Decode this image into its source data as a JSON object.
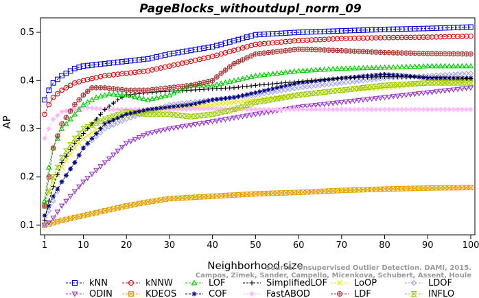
{
  "title": "PageBlocks_withoutdupl_norm_09",
  "watermark": {
    "line1": "Source: Unsupervised Outlier Detection. DAMI, 2015.",
    "line2": "Campos, Zimek, Sander, Campello, Micenkova, Schubert, Assent, Houle"
  },
  "chart_data": {
    "type": "line",
    "title": "PageBlocks_withoutdupl_norm_09",
    "xlabel": "Neighborhood size",
    "ylabel": "AP",
    "xlim": [
      1,
      100
    ],
    "ylim": [
      0.08,
      0.53
    ],
    "xticks": [
      1,
      10,
      20,
      30,
      40,
      50,
      60,
      70,
      80,
      90,
      100
    ],
    "yticks": [
      0.1,
      0.2,
      0.3,
      0.4,
      0.5
    ],
    "grid": false,
    "legend_position": "bottom",
    "series": [
      {
        "name": "kNN",
        "color": "#0000dd",
        "marker": "square",
        "x": [
          1,
          2,
          3,
          5,
          8,
          10,
          15,
          20,
          25,
          30,
          40,
          50,
          60,
          70,
          80,
          90,
          100
        ],
        "y": [
          0.36,
          0.38,
          0.395,
          0.41,
          0.425,
          0.43,
          0.435,
          0.44,
          0.445,
          0.455,
          0.47,
          0.495,
          0.5,
          0.503,
          0.506,
          0.508,
          0.511
        ]
      },
      {
        "name": "kNNW",
        "color": "#dd0000",
        "marker": "circle",
        "x": [
          1,
          2,
          3,
          5,
          8,
          10,
          15,
          20,
          25,
          30,
          40,
          50,
          60,
          70,
          80,
          90,
          100
        ],
        "y": [
          0.33,
          0.35,
          0.365,
          0.38,
          0.395,
          0.4,
          0.41,
          0.415,
          0.42,
          0.43,
          0.45,
          0.475,
          0.483,
          0.487,
          0.489,
          0.49,
          0.492
        ]
      },
      {
        "name": "LOF",
        "color": "#00cc00",
        "marker": "triangle-up",
        "x": [
          1,
          2,
          3,
          5,
          8,
          10,
          13,
          16,
          20,
          25,
          30,
          35,
          40,
          45,
          50,
          60,
          70,
          80,
          90,
          100
        ],
        "y": [
          0.15,
          0.22,
          0.26,
          0.3,
          0.33,
          0.35,
          0.365,
          0.372,
          0.37,
          0.36,
          0.37,
          0.39,
          0.39,
          0.4,
          0.41,
          0.42,
          0.425,
          0.427,
          0.43,
          0.43
        ]
      },
      {
        "name": "SimplifiedLOF",
        "color": "#000000",
        "marker": "plus",
        "x": [
          1,
          2,
          3,
          5,
          8,
          10,
          12,
          15,
          18,
          20,
          25,
          30,
          35,
          40,
          45,
          50,
          60,
          70,
          80,
          90,
          100
        ],
        "y": [
          0.11,
          0.15,
          0.18,
          0.23,
          0.27,
          0.29,
          0.31,
          0.34,
          0.36,
          0.37,
          0.375,
          0.378,
          0.38,
          0.383,
          0.385,
          0.39,
          0.398,
          0.405,
          0.408,
          0.407,
          0.404
        ]
      },
      {
        "name": "LoOP",
        "color": "#e6e600",
        "marker": "x",
        "x": [
          1,
          2,
          3,
          5,
          8,
          10,
          15,
          20,
          25,
          30,
          40,
          50,
          60,
          70,
          80,
          90,
          100
        ],
        "y": [
          0.14,
          0.17,
          0.19,
          0.22,
          0.26,
          0.28,
          0.31,
          0.33,
          0.335,
          0.345,
          0.35,
          0.36,
          0.37,
          0.38,
          0.385,
          0.395,
          0.4
        ]
      },
      {
        "name": "LDOF",
        "color": "#a0a0ff",
        "marker": "diamond",
        "x": [
          1,
          2,
          3,
          5,
          8,
          10,
          15,
          20,
          25,
          30,
          40,
          50,
          60,
          70,
          80,
          90,
          100
        ],
        "y": [
          0.1,
          0.13,
          0.15,
          0.19,
          0.23,
          0.26,
          0.3,
          0.32,
          0.335,
          0.35,
          0.36,
          0.37,
          0.385,
          0.395,
          0.405,
          0.41,
          0.415
        ]
      },
      {
        "name": "ODIN",
        "color": "#9933cc",
        "marker": "triangle-down",
        "x": [
          1,
          2,
          3,
          5,
          8,
          10,
          15,
          20,
          25,
          30,
          40,
          50,
          60,
          70,
          80,
          90,
          100
        ],
        "y": [
          0.1,
          0.105,
          0.115,
          0.14,
          0.17,
          0.19,
          0.23,
          0.27,
          0.29,
          0.3,
          0.315,
          0.33,
          0.345,
          0.355,
          0.365,
          0.375,
          0.385
        ]
      },
      {
        "name": "KDEOS",
        "color": "#e6a000",
        "marker": "square-x",
        "x": [
          1,
          5,
          10,
          15,
          20,
          25,
          30,
          40,
          50,
          60,
          70,
          80,
          90,
          100
        ],
        "y": [
          0.1,
          0.11,
          0.12,
          0.13,
          0.14,
          0.148,
          0.155,
          0.16,
          0.165,
          0.168,
          0.172,
          0.175,
          0.177,
          0.178
        ]
      },
      {
        "name": "COF",
        "color": "#000080",
        "marker": "asterisk",
        "x": [
          1,
          2,
          3,
          5,
          8,
          10,
          12,
          15,
          20,
          25,
          30,
          35,
          40,
          45,
          50,
          55,
          60,
          70,
          80,
          85,
          90,
          100
        ],
        "y": [
          0.12,
          0.14,
          0.16,
          0.19,
          0.23,
          0.26,
          0.28,
          0.31,
          0.33,
          0.34,
          0.345,
          0.35,
          0.36,
          0.365,
          0.375,
          0.385,
          0.395,
          0.405,
          0.413,
          0.41,
          0.405,
          0.405
        ]
      },
      {
        "name": "FastABOD",
        "color": "#ffbbff",
        "marker": "diamond-filled",
        "x": [
          1,
          2,
          3,
          5,
          8,
          10,
          15,
          20,
          25,
          30,
          40,
          50,
          60,
          70,
          80,
          90,
          100
        ],
        "y": [
          0.28,
          0.3,
          0.32,
          0.335,
          0.34,
          0.345,
          0.34,
          0.34,
          0.34,
          0.34,
          0.342,
          0.34,
          0.34,
          0.34,
          0.34,
          0.34,
          0.34
        ]
      },
      {
        "name": "LDF",
        "color": "#aa3333",
        "marker": "circle-plus",
        "x": [
          1,
          2,
          3,
          5,
          8,
          10,
          12,
          15,
          20,
          25,
          30,
          35,
          40,
          42,
          45,
          50,
          60,
          70,
          80,
          90,
          100
        ],
        "y": [
          0.14,
          0.2,
          0.26,
          0.31,
          0.35,
          0.37,
          0.385,
          0.385,
          0.38,
          0.38,
          0.385,
          0.39,
          0.4,
          0.415,
          0.435,
          0.455,
          0.465,
          0.462,
          0.458,
          0.456,
          0.455
        ]
      },
      {
        "name": "INFLO",
        "color": "#99cc00",
        "marker": "hourglass",
        "x": [
          1,
          2,
          3,
          5,
          8,
          10,
          15,
          20,
          25,
          30,
          35,
          40,
          45,
          50,
          60,
          70,
          80,
          90,
          100
        ],
        "y": [
          0.14,
          0.17,
          0.2,
          0.24,
          0.28,
          0.3,
          0.32,
          0.335,
          0.33,
          0.33,
          0.325,
          0.33,
          0.34,
          0.355,
          0.37,
          0.38,
          0.39,
          0.395,
          0.395
        ]
      }
    ]
  }
}
